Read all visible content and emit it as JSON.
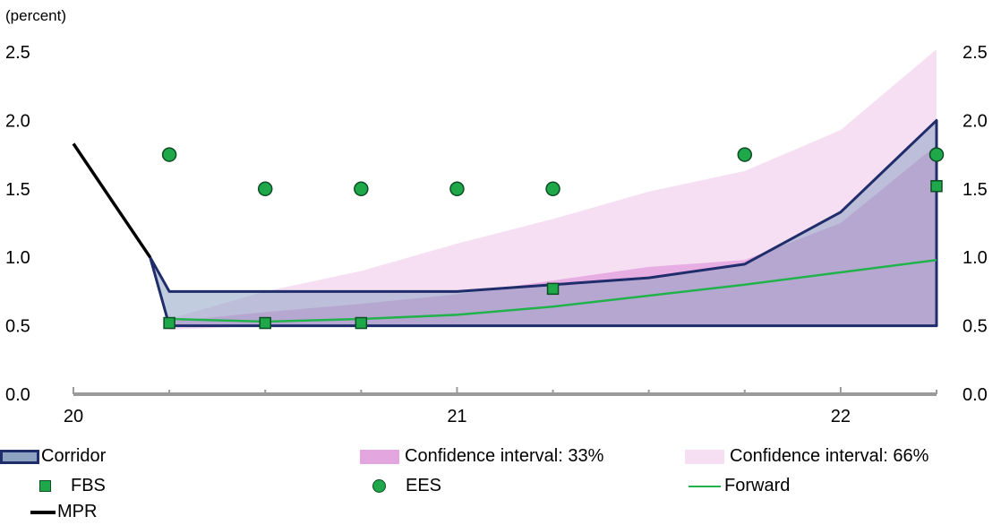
{
  "unit_label": "(percent)",
  "colors": {
    "corridor_fill": "#8ea2c2",
    "corridor_stroke": "#1f2d6b",
    "ci33": "#e4a6df",
    "ci66": "#f6dff3",
    "marker": "#1ea84a",
    "forward": "#22b24c",
    "mpr": "#000000",
    "axis": "#9a9a9a"
  },
  "legend": {
    "corridor": "Corridor",
    "ci33": "Confidence interval: 33%",
    "ci66": "Confidence interval: 66%",
    "fbs": "FBS",
    "ees": "EES",
    "forward": "Forward",
    "mpr": "MPR"
  },
  "chart_data": {
    "type": "area",
    "x_axis": {
      "ticks": [
        20,
        21,
        22
      ],
      "labels": [
        "20",
        "21",
        "22"
      ],
      "range": [
        20,
        22.25
      ]
    },
    "y_axis": {
      "range": [
        0,
        2.5
      ],
      "ticks": [
        "0.0",
        "0.5",
        "1.0",
        "1.5",
        "2.0",
        "2.5"
      ],
      "both_sides": true
    },
    "grid": false,
    "legend_position": "bottom",
    "series": [
      {
        "name": "Corridor",
        "kind": "band",
        "x": [
          20.2,
          20.25,
          20.5,
          20.75,
          21.0,
          21.25,
          21.5,
          21.75,
          22.0,
          22.25
        ],
        "lower": [
          1.0,
          0.5,
          0.5,
          0.5,
          0.5,
          0.5,
          0.5,
          0.5,
          0.5,
          0.5
        ],
        "upper": [
          1.0,
          0.75,
          0.75,
          0.75,
          0.75,
          0.8,
          0.85,
          0.95,
          1.33,
          2.0
        ]
      },
      {
        "name": "Confidence interval: 66%",
        "kind": "band",
        "x": [
          20.25,
          20.5,
          20.75,
          21.0,
          21.25,
          21.5,
          21.75,
          22.0,
          22.25
        ],
        "lower": [
          0.47,
          0.5,
          0.5,
          0.5,
          0.5,
          0.5,
          0.5,
          0.5,
          0.5
        ],
        "upper": [
          0.55,
          0.75,
          0.9,
          1.1,
          1.28,
          1.48,
          1.63,
          1.93,
          2.52
        ]
      },
      {
        "name": "Confidence interval: 33%",
        "kind": "band",
        "x": [
          20.25,
          20.5,
          20.75,
          21.0,
          21.25,
          21.5,
          21.75,
          22.0,
          22.25
        ],
        "lower": [
          0.5,
          0.5,
          0.5,
          0.5,
          0.5,
          0.5,
          0.5,
          0.5,
          0.5
        ],
        "upper": [
          0.53,
          0.6,
          0.66,
          0.73,
          0.83,
          0.93,
          0.98,
          1.25,
          1.82
        ]
      },
      {
        "name": "FBS",
        "kind": "square",
        "x": [
          20.25,
          20.5,
          20.75,
          21.25,
          22.25
        ],
        "y": [
          0.52,
          0.52,
          0.52,
          0.77,
          1.52
        ]
      },
      {
        "name": "EES",
        "kind": "circle",
        "x": [
          20.25,
          20.5,
          20.75,
          21.0,
          21.25,
          21.75,
          22.25
        ],
        "y": [
          1.75,
          1.5,
          1.5,
          1.5,
          1.5,
          1.75,
          1.75
        ]
      },
      {
        "name": "Forward",
        "kind": "line",
        "x": [
          20.25,
          20.5,
          20.75,
          21.0,
          21.25,
          21.5,
          21.75,
          22.0,
          22.25
        ],
        "y": [
          0.55,
          0.53,
          0.55,
          0.58,
          0.64,
          0.72,
          0.8,
          0.89,
          0.98
        ]
      },
      {
        "name": "MPR",
        "kind": "line",
        "x": [
          20.0,
          20.2
        ],
        "y": [
          1.83,
          1.0
        ]
      }
    ]
  }
}
